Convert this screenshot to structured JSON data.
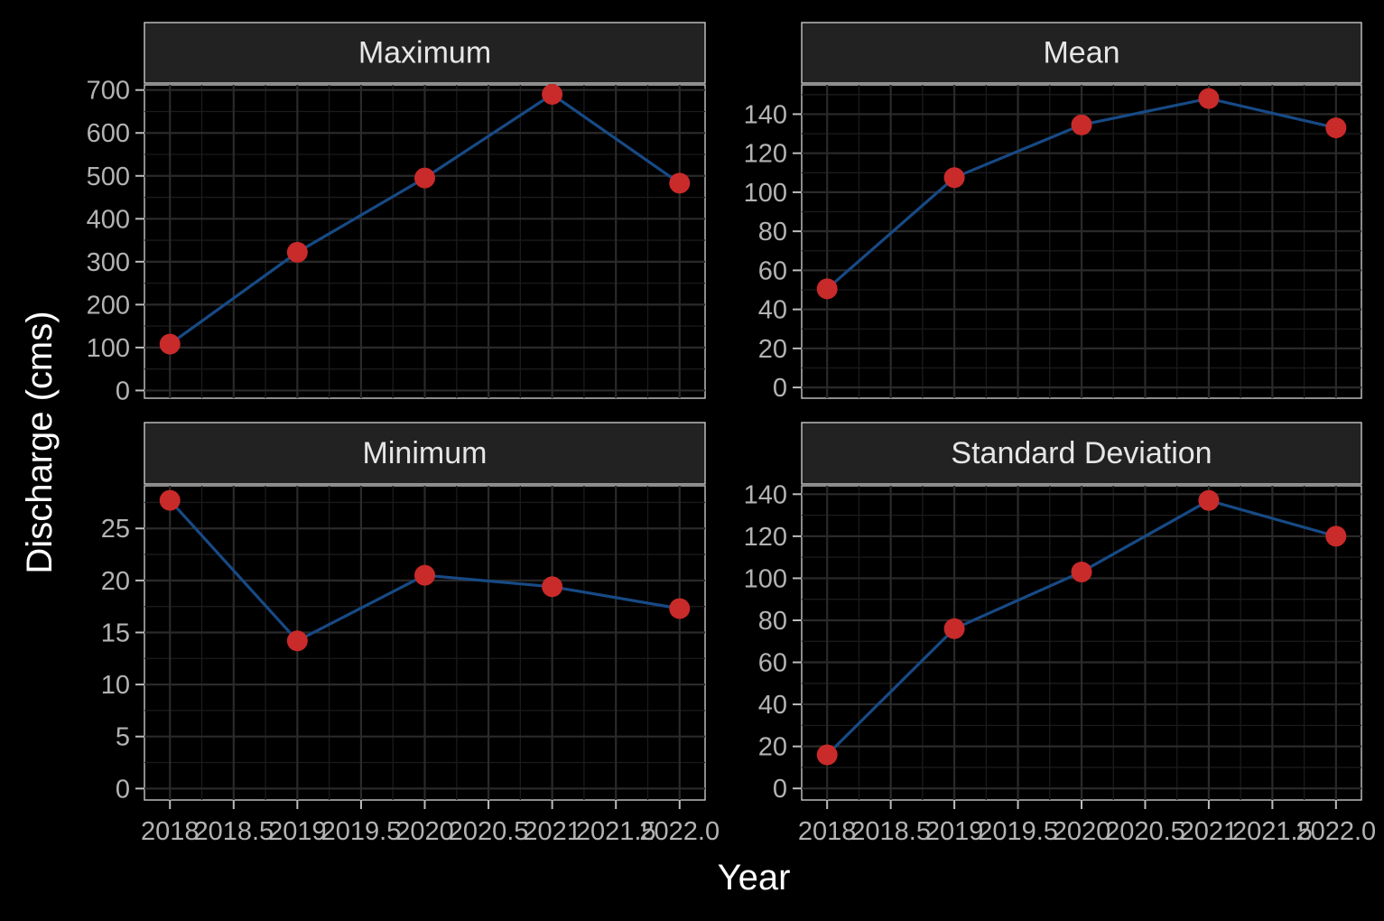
{
  "chart_data": {
    "type": "line",
    "xlabel": "Year",
    "ylabel": "Discharge (cms)",
    "colors": {
      "line": "#174a85",
      "point": "#c92a2a",
      "strip": "#222222",
      "background": "#000000"
    },
    "x_tick_labels": [
      "2018",
      "2018.5",
      "2019",
      "2019.5",
      "2020",
      "2020.5",
      "2021",
      "2021.5",
      "2022.0"
    ],
    "grid": true,
    "panels": [
      {
        "title": "Maximum",
        "x": [
          2018,
          2019,
          2020,
          2021,
          2022
        ],
        "values": [
          108,
          322,
          495,
          690,
          483
        ],
        "ylim": [
          -18,
          712
        ],
        "y_ticks": [
          0,
          100,
          200,
          300,
          400,
          500,
          600,
          700
        ],
        "y_tick_labels": [
          "0",
          "100",
          "200",
          "300",
          "400",
          "500",
          "600",
          "700"
        ]
      },
      {
        "title": "Mean",
        "x": [
          2018,
          2019,
          2020,
          2021,
          2022
        ],
        "values": [
          50.5,
          107.5,
          134.5,
          148,
          133
        ],
        "ylim": [
          -5.5,
          155
        ],
        "y_ticks": [
          0,
          20,
          40,
          60,
          80,
          100,
          120,
          140
        ],
        "y_tick_labels": [
          "0",
          "20",
          "40",
          "60",
          "80",
          "100",
          "120",
          "140"
        ]
      },
      {
        "title": "Minimum",
        "x": [
          2018,
          2019,
          2020,
          2021,
          2022
        ],
        "values": [
          27.7,
          14.2,
          20.5,
          19.4,
          17.3
        ],
        "ylim": [
          -1.1,
          29.1
        ],
        "y_ticks": [
          0,
          5,
          10,
          15,
          20,
          25
        ],
        "y_tick_labels": [
          "0",
          "5",
          "10",
          "15",
          "20",
          "25"
        ]
      },
      {
        "title": "Standard Deviation",
        "x": [
          2018,
          2019,
          2020,
          2021,
          2022
        ],
        "values": [
          16,
          76,
          103,
          137,
          120
        ],
        "ylim": [
          -5.5,
          144
        ],
        "y_ticks": [
          0,
          20,
          40,
          60,
          80,
          100,
          120,
          140
        ],
        "y_tick_labels": [
          "0",
          "20",
          "40",
          "60",
          "80",
          "100",
          "120",
          "140"
        ]
      }
    ]
  }
}
